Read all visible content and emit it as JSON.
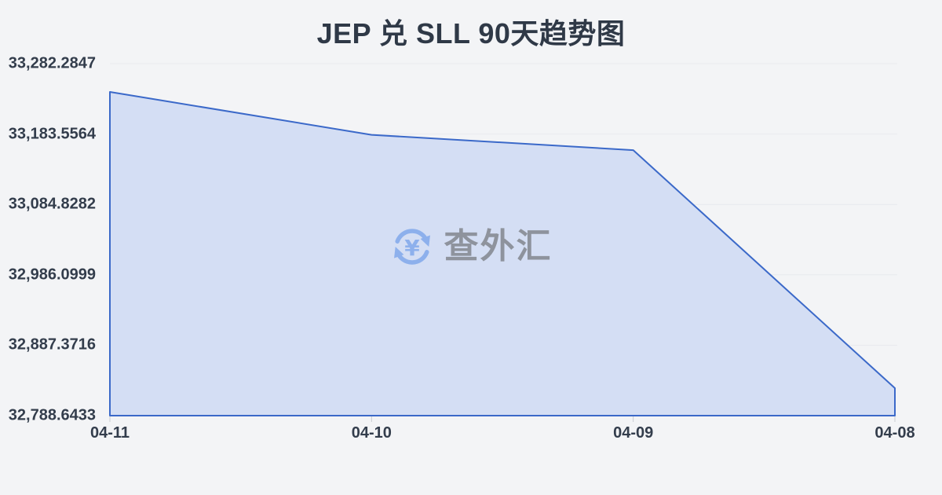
{
  "title": "JEP 兑 SLL 90天趋势图",
  "watermark": {
    "text": "查外汇",
    "icon": "currency-exchange-refresh-yen-icon",
    "icon_color": "#8db0ec",
    "text_color": "#8e939d"
  },
  "chart_data": {
    "type": "area",
    "title": "JEP 兑 SLL 90天趋势图",
    "categories": [
      "04-11",
      "04-10",
      "04-09",
      "04-08"
    ],
    "values": [
      33242.6,
      33182.5,
      33161.0,
      32827.2
    ],
    "y_tick_labels": [
      "33,282.2847",
      "33,183.5564",
      "33,084.8282",
      "32,986.0999",
      "32,887.3716",
      "32,788.6433"
    ],
    "ylim": [
      32788.6433,
      33282.2847
    ],
    "xlabel": "",
    "ylabel": "",
    "grid": true,
    "legend": false,
    "line_color": "#3b69c9",
    "fill_color": "#d4def4",
    "grid_color": "#e8eaee",
    "tick_color": "#c8ccd3",
    "background_color": "#f3f4f6",
    "text_color": "#333d4c"
  }
}
